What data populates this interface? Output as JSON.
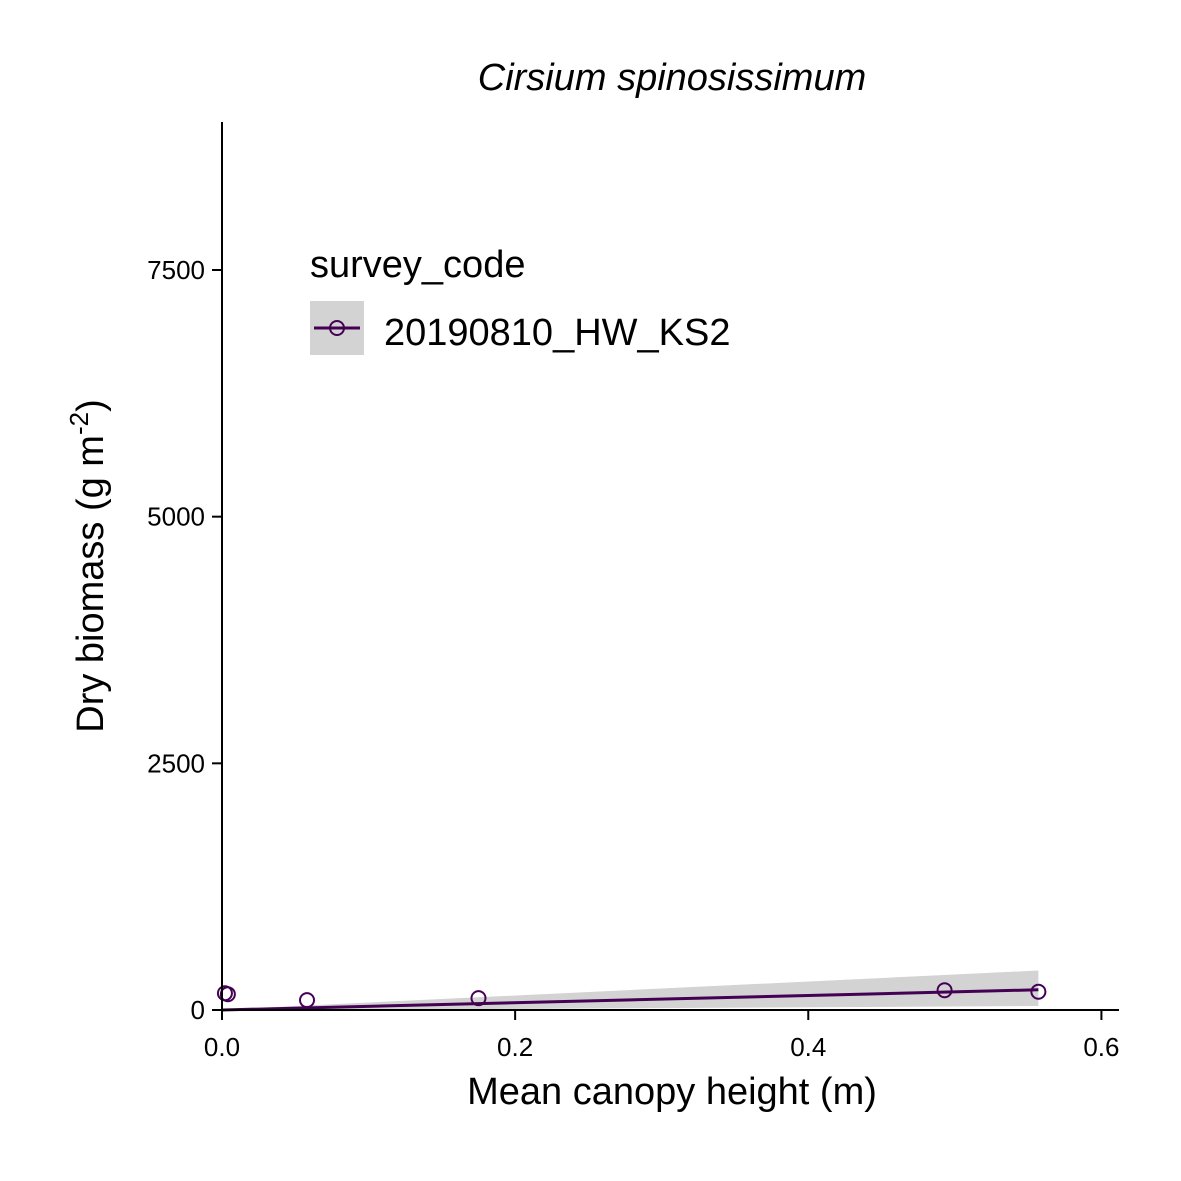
{
  "chart_data": {
    "type": "scatter",
    "title": "Cirsium spinosissimum",
    "xlabel": "Mean canopy height (m)",
    "ylabel": "Dry biomass (g m",
    "ylabel_sup": "-2",
    "ylabel_close": ")",
    "xlim": [
      0.0,
      0.612
    ],
    "ylim": [
      0,
      9000
    ],
    "x_ticks": [
      0.0,
      0.2,
      0.4,
      0.6
    ],
    "x_tick_labels": [
      "0.0",
      "0.2",
      "0.4",
      "0.6"
    ],
    "y_ticks": [
      0,
      2500,
      5000,
      7500
    ],
    "y_tick_labels": [
      "0",
      "2500",
      "5000",
      "7500"
    ],
    "grid": false,
    "legend": {
      "title": "survey_code",
      "position": "top-left",
      "entries": [
        "20190810_HW_KS2"
      ]
    },
    "series": [
      {
        "name": "20190810_HW_KS2",
        "color": "#440154",
        "points": [
          {
            "x": 0.002,
            "y": 170
          },
          {
            "x": 0.004,
            "y": 160
          },
          {
            "x": 0.058,
            "y": 100
          },
          {
            "x": 0.175,
            "y": 120
          },
          {
            "x": 0.493,
            "y": 200
          },
          {
            "x": 0.557,
            "y": 185
          }
        ],
        "fit_line": [
          {
            "x": 0.0,
            "y": 0
          },
          {
            "x": 0.557,
            "y": 205
          }
        ],
        "confidence_band": {
          "x": [
            0.0,
            0.557
          ],
          "lower": [
            -5,
            40
          ],
          "upper": [
            5,
            400
          ]
        }
      }
    ],
    "band_color": "#d3d3d3"
  }
}
